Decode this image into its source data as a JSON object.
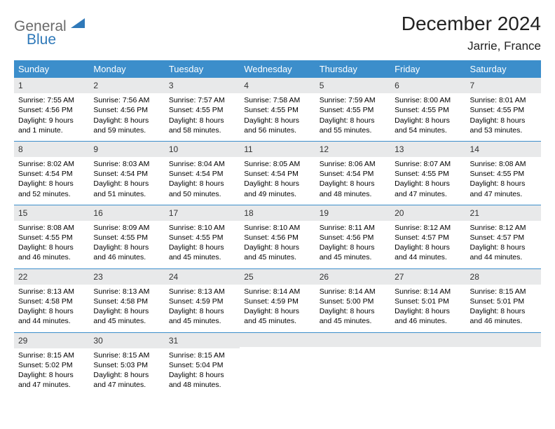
{
  "logo": {
    "line1": "General",
    "line2": "Blue",
    "color_gray": "#6a6a6a",
    "color_blue": "#2f79b9"
  },
  "title": "December 2024",
  "location": "Jarrie, France",
  "day_headers": [
    "Sunday",
    "Monday",
    "Tuesday",
    "Wednesday",
    "Thursday",
    "Friday",
    "Saturday"
  ],
  "header_bg": "#3c8ecb",
  "daynum_bg": "#e8e9ea",
  "row_border": "#3c8ecb",
  "columns": 7,
  "rows": 5,
  "days": [
    {
      "n": "1",
      "sunrise": "7:55 AM",
      "sunset": "4:56 PM",
      "daylight": "9 hours and 1 minute."
    },
    {
      "n": "2",
      "sunrise": "7:56 AM",
      "sunset": "4:56 PM",
      "daylight": "8 hours and 59 minutes."
    },
    {
      "n": "3",
      "sunrise": "7:57 AM",
      "sunset": "4:55 PM",
      "daylight": "8 hours and 58 minutes."
    },
    {
      "n": "4",
      "sunrise": "7:58 AM",
      "sunset": "4:55 PM",
      "daylight": "8 hours and 56 minutes."
    },
    {
      "n": "5",
      "sunrise": "7:59 AM",
      "sunset": "4:55 PM",
      "daylight": "8 hours and 55 minutes."
    },
    {
      "n": "6",
      "sunrise": "8:00 AM",
      "sunset": "4:55 PM",
      "daylight": "8 hours and 54 minutes."
    },
    {
      "n": "7",
      "sunrise": "8:01 AM",
      "sunset": "4:55 PM",
      "daylight": "8 hours and 53 minutes."
    },
    {
      "n": "8",
      "sunrise": "8:02 AM",
      "sunset": "4:54 PM",
      "daylight": "8 hours and 52 minutes."
    },
    {
      "n": "9",
      "sunrise": "8:03 AM",
      "sunset": "4:54 PM",
      "daylight": "8 hours and 51 minutes."
    },
    {
      "n": "10",
      "sunrise": "8:04 AM",
      "sunset": "4:54 PM",
      "daylight": "8 hours and 50 minutes."
    },
    {
      "n": "11",
      "sunrise": "8:05 AM",
      "sunset": "4:54 PM",
      "daylight": "8 hours and 49 minutes."
    },
    {
      "n": "12",
      "sunrise": "8:06 AM",
      "sunset": "4:54 PM",
      "daylight": "8 hours and 48 minutes."
    },
    {
      "n": "13",
      "sunrise": "8:07 AM",
      "sunset": "4:55 PM",
      "daylight": "8 hours and 47 minutes."
    },
    {
      "n": "14",
      "sunrise": "8:08 AM",
      "sunset": "4:55 PM",
      "daylight": "8 hours and 47 minutes."
    },
    {
      "n": "15",
      "sunrise": "8:08 AM",
      "sunset": "4:55 PM",
      "daylight": "8 hours and 46 minutes."
    },
    {
      "n": "16",
      "sunrise": "8:09 AM",
      "sunset": "4:55 PM",
      "daylight": "8 hours and 46 minutes."
    },
    {
      "n": "17",
      "sunrise": "8:10 AM",
      "sunset": "4:55 PM",
      "daylight": "8 hours and 45 minutes."
    },
    {
      "n": "18",
      "sunrise": "8:10 AM",
      "sunset": "4:56 PM",
      "daylight": "8 hours and 45 minutes."
    },
    {
      "n": "19",
      "sunrise": "8:11 AM",
      "sunset": "4:56 PM",
      "daylight": "8 hours and 45 minutes."
    },
    {
      "n": "20",
      "sunrise": "8:12 AM",
      "sunset": "4:57 PM",
      "daylight": "8 hours and 44 minutes."
    },
    {
      "n": "21",
      "sunrise": "8:12 AM",
      "sunset": "4:57 PM",
      "daylight": "8 hours and 44 minutes."
    },
    {
      "n": "22",
      "sunrise": "8:13 AM",
      "sunset": "4:58 PM",
      "daylight": "8 hours and 44 minutes."
    },
    {
      "n": "23",
      "sunrise": "8:13 AM",
      "sunset": "4:58 PM",
      "daylight": "8 hours and 45 minutes."
    },
    {
      "n": "24",
      "sunrise": "8:13 AM",
      "sunset": "4:59 PM",
      "daylight": "8 hours and 45 minutes."
    },
    {
      "n": "25",
      "sunrise": "8:14 AM",
      "sunset": "4:59 PM",
      "daylight": "8 hours and 45 minutes."
    },
    {
      "n": "26",
      "sunrise": "8:14 AM",
      "sunset": "5:00 PM",
      "daylight": "8 hours and 45 minutes."
    },
    {
      "n": "27",
      "sunrise": "8:14 AM",
      "sunset": "5:01 PM",
      "daylight": "8 hours and 46 minutes."
    },
    {
      "n": "28",
      "sunrise": "8:15 AM",
      "sunset": "5:01 PM",
      "daylight": "8 hours and 46 minutes."
    },
    {
      "n": "29",
      "sunrise": "8:15 AM",
      "sunset": "5:02 PM",
      "daylight": "8 hours and 47 minutes."
    },
    {
      "n": "30",
      "sunrise": "8:15 AM",
      "sunset": "5:03 PM",
      "daylight": "8 hours and 47 minutes."
    },
    {
      "n": "31",
      "sunrise": "8:15 AM",
      "sunset": "5:04 PM",
      "daylight": "8 hours and 48 minutes."
    }
  ],
  "labels": {
    "sunrise": "Sunrise: ",
    "sunset": "Sunset: ",
    "daylight": "Daylight: "
  }
}
